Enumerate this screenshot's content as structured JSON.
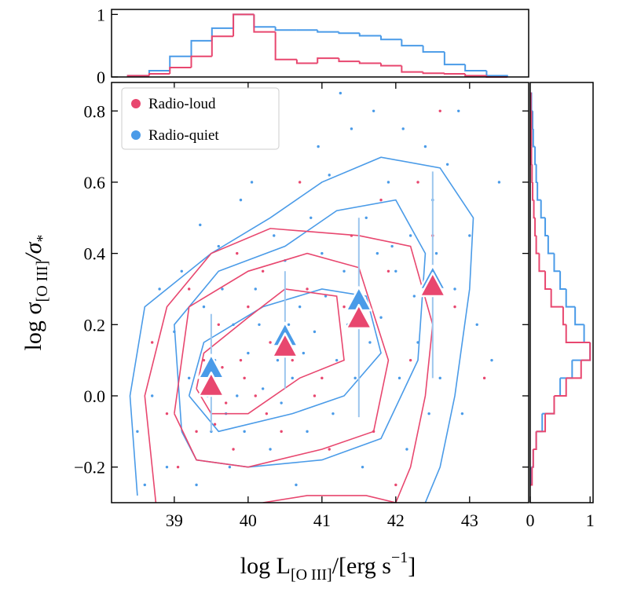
{
  "chart_data": [
    {
      "type": "scatter",
      "xlabel": {
        "main": "log L",
        "sub": "[O III]",
        "rest": "/[erg s",
        "sup": "−1",
        "end": "]"
      },
      "ylabel": {
        "main": "log σ",
        "sub": "[O III]",
        "rest": "/σ",
        "sub2": "*"
      },
      "xlim": [
        38.15,
        43.8
      ],
      "ylim": [
        -0.3,
        0.88
      ],
      "xticks": [
        39,
        40,
        41,
        42,
        43
      ],
      "yticks": [
        {
          "value": -0.2,
          "label": "−0.2"
        },
        {
          "value": 0,
          "label": "0.0"
        },
        {
          "value": 0.2,
          "label": "0.2"
        },
        {
          "value": 0.4,
          "label": "0.4"
        },
        {
          "value": 0.6,
          "label": "0.6"
        },
        {
          "value": 0.8,
          "label": "0.8"
        }
      ],
      "legend": "upper left",
      "series": [
        {
          "name": "Radio-quiet",
          "color": "#4a9be8",
          "x": [
            39.2,
            39.5,
            39.8,
            40.1,
            40.4,
            40.7,
            41.0,
            41.3,
            41.6,
            41.9,
            42.2,
            42.5,
            42.8,
            43.1,
            38.7,
            38.9,
            39.1,
            39.4,
            39.7,
            40.0,
            40.3,
            40.6,
            40.9,
            41.2,
            41.5,
            41.8,
            42.1,
            42.4,
            42.7,
            43.0,
            38.5,
            39.0,
            39.3,
            39.6,
            39.9,
            40.2,
            40.5,
            40.8,
            41.1,
            41.4,
            41.7,
            42.0,
            42.3,
            42.6,
            42.9,
            43.3,
            39.55,
            39.85,
            40.15,
            40.45,
            40.75,
            41.05,
            41.35,
            41.65,
            41.95,
            42.25,
            42.55,
            38.8,
            39.35,
            40.05,
            40.95,
            41.55,
            42.15,
            42.85,
            41.25,
            40.65,
            39.75,
            38.6,
            43.4,
            42.45,
            41.45,
            40.35,
            39.65,
            39.45,
            40.85,
            41.75,
            42.05,
            39.95,
            40.55,
            41.15
          ],
          "y": [
            0.05,
            -0.1,
            0.2,
            0.3,
            0.1,
            0.25,
            0.4,
            0.35,
            0.5,
            0.6,
            0.45,
            0.55,
            0.3,
            0.2,
            0.0,
            -0.2,
            0.35,
            0.25,
            -0.05,
            0.12,
            -0.15,
            0.05,
            0.18,
            0.1,
            0.3,
            0.22,
            0.75,
            0.7,
            0.65,
            0.45,
            -0.1,
            0.18,
            -0.25,
            0.42,
            0.55,
            0.02,
            0.38,
            -0.1,
            0.62,
            0.75,
            0.8,
            0.35,
            0.15,
            0.05,
            -0.05,
            0.1,
            0.1,
            0.0,
            0.2,
            -0.02,
            0.12,
            0.28,
            0.2,
            0.15,
            0.42,
            0.28,
            0.4,
            0.3,
            0.48,
            0.6,
            0.7,
            -0.2,
            -0.15,
            0.8,
            0.85,
            -0.25,
            -0.2,
            -0.25,
            0.6,
            -0.05,
            0.05,
            0.45,
            0.3,
            0.0,
            0.5,
            0.4,
            0.05,
            -0.1,
            0.2,
            -0.05
          ],
          "contours": [
            {
              "x": [
                38.5,
                38.4,
                38.6,
                39.5,
                40.3,
                41.0,
                41.8,
                42.6,
                43.05,
                43.0,
                42.8,
                42.6,
                42.4
              ],
              "y": [
                -0.28,
                0.0,
                0.25,
                0.4,
                0.5,
                0.6,
                0.67,
                0.64,
                0.5,
                0.3,
                0.0,
                -0.2,
                -0.3
              ]
            },
            {
              "x": [
                39.1,
                39.0,
                39.6,
                40.5,
                41.2,
                42.0,
                42.4,
                42.3,
                41.8,
                41.0,
                40.0,
                39.3,
                39.1
              ],
              "y": [
                -0.1,
                0.2,
                0.35,
                0.42,
                0.52,
                0.55,
                0.4,
                0.1,
                -0.12,
                -0.18,
                -0.2,
                -0.18,
                -0.1
              ]
            },
            {
              "x": [
                39.2,
                39.4,
                40.2,
                41.0,
                41.6,
                41.8,
                41.3,
                40.6,
                39.6,
                39.2
              ],
              "y": [
                0.0,
                0.15,
                0.25,
                0.3,
                0.28,
                0.12,
                0.0,
                -0.05,
                -0.1,
                0.0
              ]
            }
          ],
          "binned": {
            "x": [
              39.5,
              40.5,
              41.5,
              42.5
            ],
            "y": [
              0.08,
              0.17,
              0.27,
              0.33
            ],
            "err_low": [
              0.18,
              0.15,
              0.33,
              0.28
            ],
            "err_high": [
              0.15,
              0.18,
              0.23,
              0.3
            ]
          }
        },
        {
          "name": "Radio-loud",
          "color": "#e8476f",
          "x": [
            39.5,
            39.7,
            39.9,
            40.1,
            39.3,
            39.6,
            40.3,
            40.6,
            39.8,
            40.0,
            39.4,
            39.2,
            40.8,
            41.0,
            41.3,
            41.6,
            41.9,
            42.2,
            42.5,
            42.8,
            38.9,
            39.05,
            39.85,
            40.45,
            40.2,
            41.4,
            41.1,
            42.0,
            42.6,
            42.3,
            39.65,
            39.95,
            40.25,
            39.55,
            40.7,
            41.8,
            38.7,
            43.2,
            41.7,
            40.9
          ],
          "y": [
            0.05,
            -0.02,
            0.1,
            0.0,
            -0.1,
            0.2,
            0.15,
            0.1,
            -0.15,
            0.25,
            0.1,
            0.3,
            0.3,
            0.05,
            0.25,
            0.2,
            0.35,
            0.1,
            0.45,
            0.25,
            -0.05,
            -0.2,
            0.4,
            -0.1,
            0.35,
            0.45,
            -0.15,
            -0.25,
            0.8,
            0.6,
            0.08,
            0.05,
            -0.05,
            -0.08,
            0.6,
            0.55,
            0.15,
            0.05,
            -0.1,
            0.0
          ],
          "contours": [
            {
              "x": [
                38.75,
                38.6,
                38.9,
                39.5,
                40.3,
                41.5,
                42.2,
                42.5,
                42.4,
                42.2,
                42.0
              ],
              "y": [
                -0.3,
                0.0,
                0.25,
                0.4,
                0.47,
                0.45,
                0.42,
                0.2,
                0.0,
                -0.2,
                -0.3
              ]
            },
            {
              "x": [
                39.0,
                39.2,
                40.0,
                40.8,
                41.5,
                41.9,
                41.7,
                41.0,
                40.0,
                39.3,
                39.0
              ],
              "y": [
                -0.05,
                0.25,
                0.35,
                0.4,
                0.36,
                0.1,
                -0.1,
                -0.15,
                -0.2,
                -0.18,
                -0.05
              ]
            },
            {
              "x": [
                39.3,
                39.4,
                40.0,
                40.5,
                41.2,
                41.3,
                40.7,
                40.0,
                39.5,
                39.3
              ],
              "y": [
                0.02,
                0.12,
                0.22,
                0.3,
                0.28,
                0.1,
                0.05,
                -0.05,
                -0.05,
                0.02
              ]
            },
            {
              "x": [
                40.2,
                40.8,
                41.6,
                42.0
              ],
              "y": [
                -0.3,
                -0.28,
                -0.28,
                -0.3
              ]
            }
          ],
          "binned": {
            "x": [
              39.5,
              40.5,
              41.5,
              42.5
            ],
            "y": [
              0.03,
              0.14,
              0.22,
              0.31
            ]
          }
        }
      ]
    },
    {
      "type": "histogram",
      "orientation": "vertical",
      "xlim": [
        38.15,
        43.8
      ],
      "ylim": [
        0,
        1.08
      ],
      "yticks": [
        0,
        1
      ],
      "bins": [
        38.37,
        38.66,
        38.94,
        39.23,
        39.51,
        39.8,
        40.08,
        40.37,
        40.66,
        40.94,
        41.23,
        41.51,
        41.8,
        42.08,
        42.37,
        42.66,
        42.94,
        43.23,
        43.51
      ],
      "series": [
        {
          "color": "#4a9be8",
          "counts": [
            0.02,
            0.1,
            0.33,
            0.58,
            0.78,
            1.0,
            0.8,
            0.75,
            0.75,
            0.72,
            0.7,
            0.66,
            0.6,
            0.5,
            0.4,
            0.2,
            0.1,
            0.02
          ]
        },
        {
          "color": "#e8476f",
          "counts": [
            0.02,
            0.05,
            0.15,
            0.33,
            0.65,
            1.0,
            0.72,
            0.28,
            0.22,
            0.3,
            0.25,
            0.22,
            0.18,
            0.08,
            0.06,
            0.05,
            0.02,
            0.0
          ]
        }
      ]
    },
    {
      "type": "histogram",
      "orientation": "horizontal",
      "xlim": [
        0,
        1.05
      ],
      "ylim": [
        -0.3,
        0.88
      ],
      "xticks": [
        0,
        1
      ],
      "bins": [
        -0.25,
        -0.2,
        -0.15,
        -0.1,
        -0.05,
        0,
        0.05,
        0.1,
        0.15,
        0.2,
        0.25,
        0.3,
        0.35,
        0.4,
        0.45,
        0.5,
        0.55,
        0.6,
        0.65,
        0.7,
        0.75,
        0.8,
        0.85
      ],
      "series": [
        {
          "color": "#4a9be8",
          "counts": [
            0.02,
            0.05,
            0.1,
            0.2,
            0.4,
            0.5,
            0.7,
            1.0,
            0.9,
            0.75,
            0.6,
            0.5,
            0.4,
            0.3,
            0.25,
            0.18,
            0.12,
            0.1,
            0.08,
            0.05,
            0.04,
            0.02
          ]
        },
        {
          "color": "#e8476f",
          "counts": [
            0.03,
            0.05,
            0.1,
            0.25,
            0.4,
            0.6,
            0.85,
            1.0,
            0.6,
            0.55,
            0.35,
            0.25,
            0.15,
            0.1,
            0.08,
            0.06,
            0.04,
            0.03,
            0.02,
            0.02,
            0.02,
            0.01
          ]
        }
      ]
    }
  ]
}
